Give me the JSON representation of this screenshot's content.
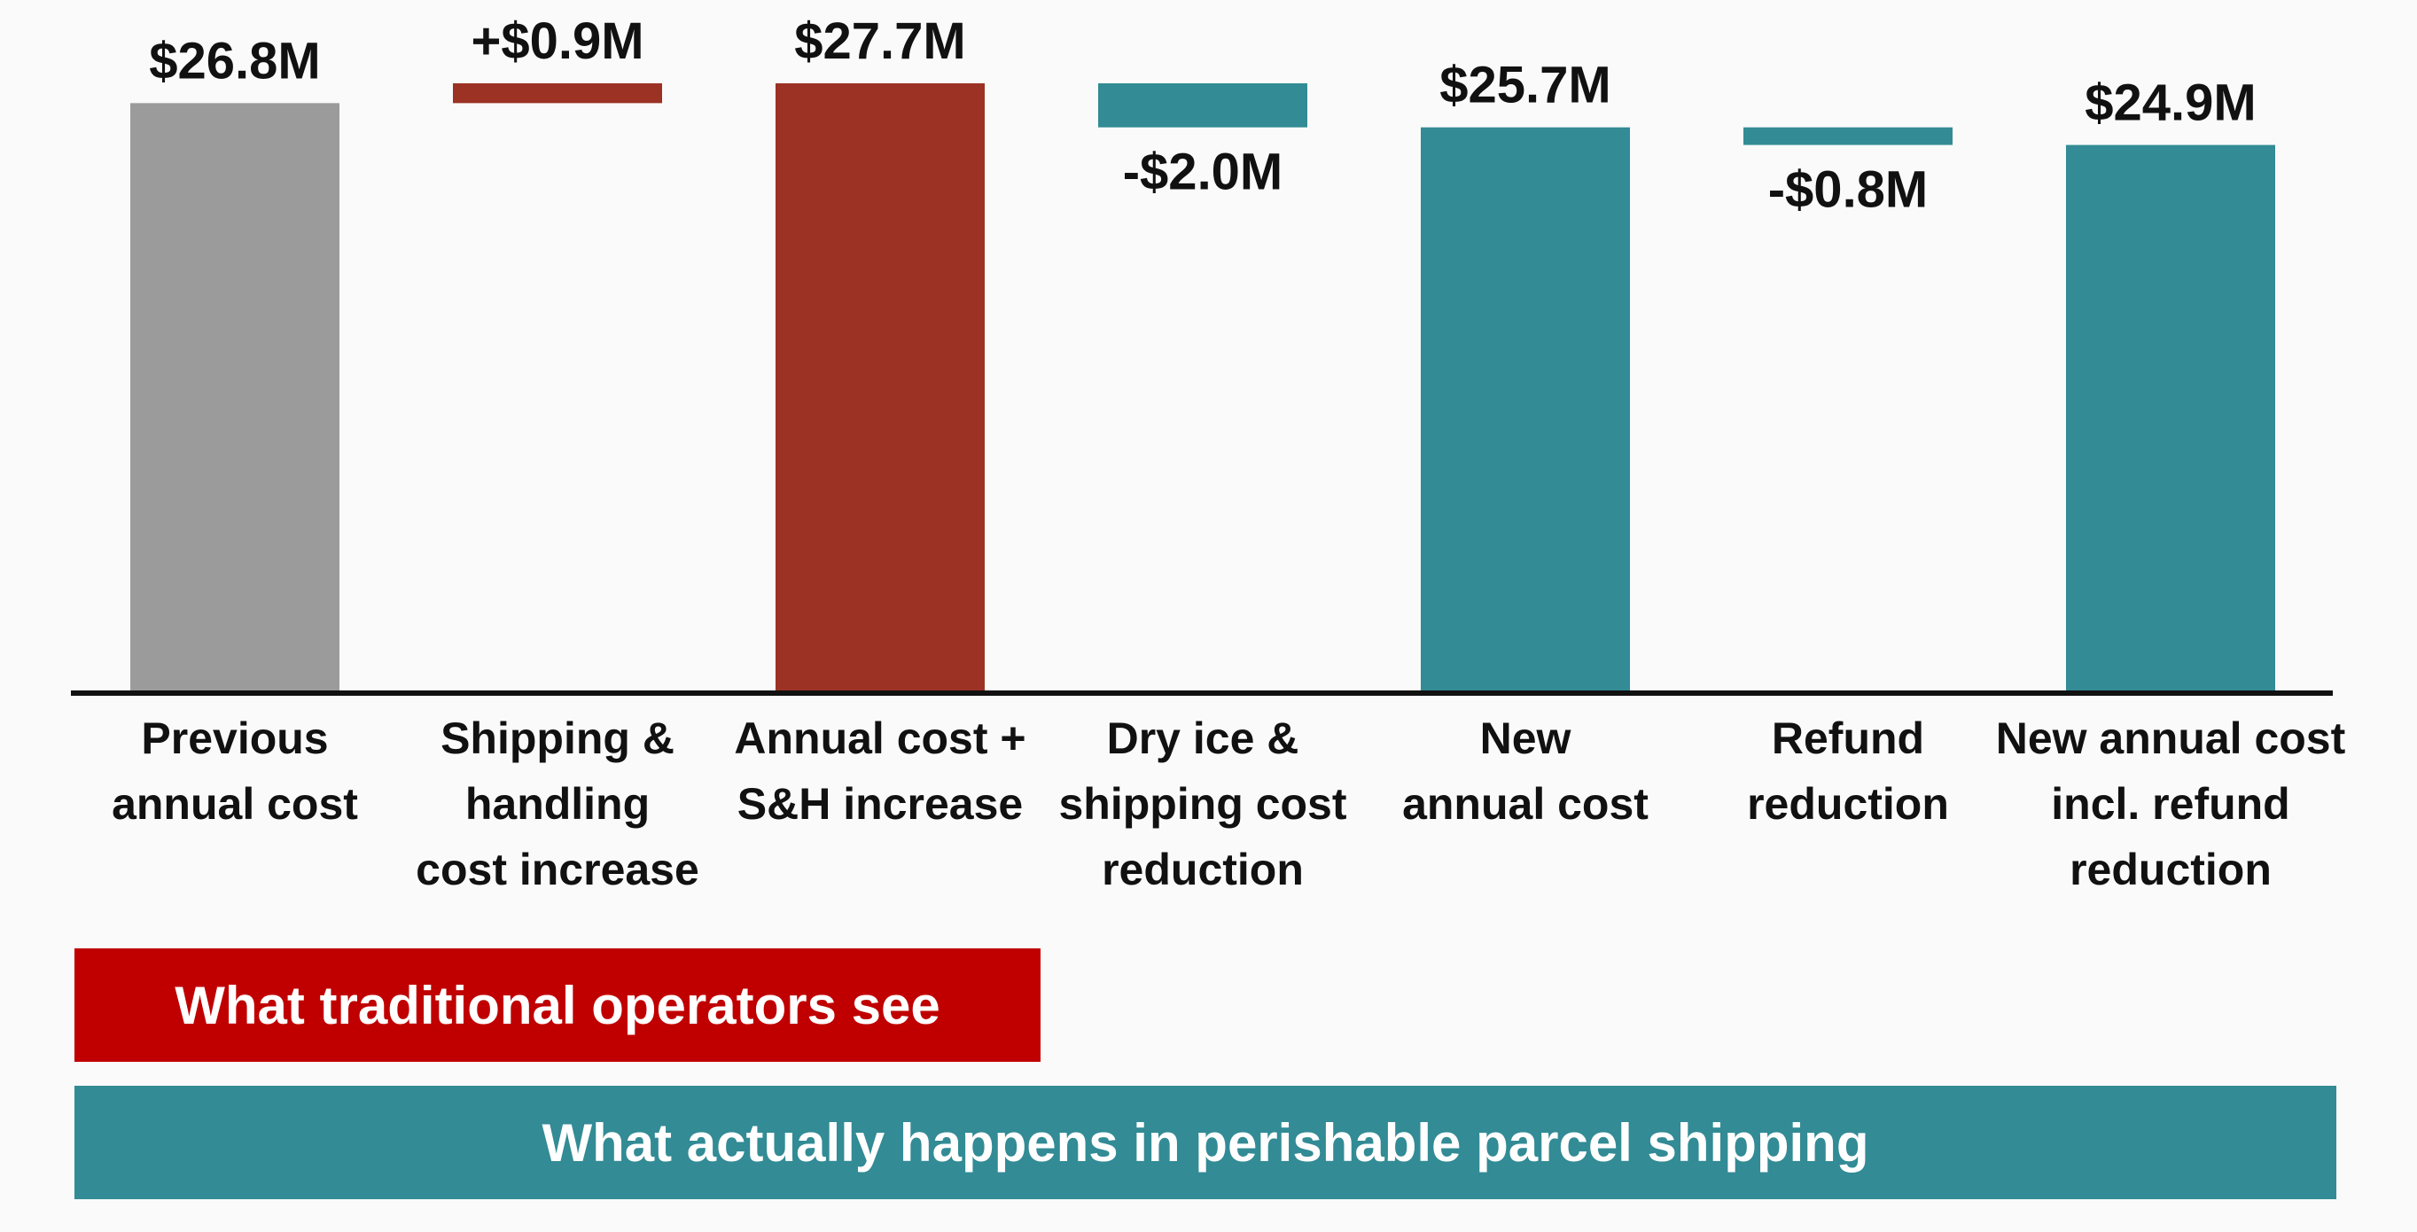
{
  "colors": {
    "gray": "#9b9b9b",
    "red": "#9b3224",
    "teal": "#328b95",
    "banner_red": "#c00000",
    "banner_teal": "#328b95"
  },
  "chart_data": {
    "type": "waterfall",
    "title": "",
    "unit": "$M",
    "ylim": [
      0,
      27.7
    ],
    "categories": [
      [
        "Previous",
        "annual cost"
      ],
      [
        "Shipping &",
        "handling",
        "cost increase"
      ],
      [
        "Annual cost +",
        "S&H increase"
      ],
      [
        "Dry ice &",
        "shipping cost",
        "reduction"
      ],
      [
        "New",
        "annual cost"
      ],
      [
        "Refund",
        "reduction"
      ],
      [
        "New annual cost",
        "incl. refund",
        "reduction"
      ]
    ],
    "bars": [
      {
        "kind": "total",
        "value": 26.8,
        "label": "$26.8M",
        "color": "gray"
      },
      {
        "kind": "delta",
        "value": 0.9,
        "label": "+$0.9M",
        "color": "red"
      },
      {
        "kind": "total",
        "value": 27.7,
        "label": "$27.7M",
        "color": "red"
      },
      {
        "kind": "delta",
        "value": -2.0,
        "label": "-$2.0M",
        "color": "teal"
      },
      {
        "kind": "total",
        "value": 25.7,
        "label": "$25.7M",
        "color": "teal"
      },
      {
        "kind": "delta",
        "value": -0.8,
        "label": "-$0.8M",
        "color": "teal"
      },
      {
        "kind": "total",
        "value": 24.9,
        "label": "$24.9M",
        "color": "teal"
      }
    ]
  },
  "banners": {
    "traditional": "What traditional operators see",
    "actual": "What actually happens in perishable parcel shipping"
  }
}
